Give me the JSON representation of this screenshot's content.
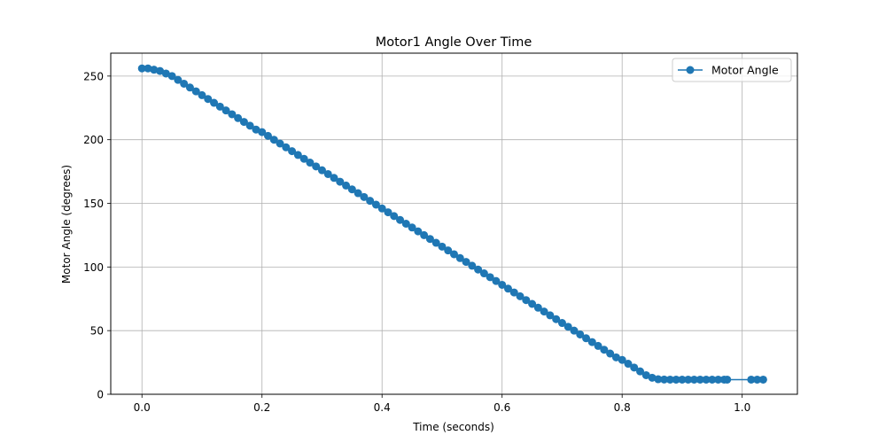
{
  "chart_data": {
    "type": "line",
    "title": "Motor1 Angle Over Time",
    "xlabel": "Time (seconds)",
    "ylabel": "Motor Angle (degrees)",
    "xlim": [
      -0.052,
      1.092
    ],
    "ylim": [
      0,
      268
    ],
    "x_ticks": [
      0.0,
      0.2,
      0.4,
      0.6,
      0.8,
      1.0
    ],
    "x_tick_labels": [
      "0.0",
      "0.2",
      "0.4",
      "0.6",
      "0.8",
      "1.0"
    ],
    "y_ticks": [
      0,
      50,
      100,
      150,
      200,
      250
    ],
    "y_tick_labels": [
      "0",
      "50",
      "100",
      "150",
      "200",
      "250"
    ],
    "grid": true,
    "legend_position": "top-right",
    "colors": {
      "series": "#1f77b4",
      "grid": "#b0b0b0",
      "axis": "#000000"
    },
    "series": [
      {
        "name": "Motor Angle",
        "marker": "circle",
        "x": [
          0.0,
          0.01,
          0.02,
          0.03,
          0.04,
          0.05,
          0.06,
          0.07,
          0.08,
          0.09,
          0.1,
          0.11,
          0.12,
          0.13,
          0.14,
          0.15,
          0.16,
          0.17,
          0.18,
          0.19,
          0.2,
          0.21,
          0.22,
          0.23,
          0.24,
          0.25,
          0.26,
          0.27,
          0.28,
          0.29,
          0.3,
          0.31,
          0.32,
          0.33,
          0.34,
          0.35,
          0.36,
          0.37,
          0.38,
          0.39,
          0.4,
          0.41,
          0.42,
          0.43,
          0.44,
          0.45,
          0.46,
          0.47,
          0.48,
          0.49,
          0.5,
          0.51,
          0.52,
          0.53,
          0.54,
          0.55,
          0.56,
          0.57,
          0.58,
          0.59,
          0.6,
          0.61,
          0.62,
          0.63,
          0.64,
          0.65,
          0.66,
          0.67,
          0.68,
          0.69,
          0.7,
          0.71,
          0.72,
          0.73,
          0.74,
          0.75,
          0.76,
          0.77,
          0.78,
          0.79,
          0.8,
          0.81,
          0.82,
          0.83,
          0.84,
          0.85,
          0.86,
          0.87,
          0.88,
          0.89,
          0.9,
          0.91,
          0.92,
          0.93,
          0.94,
          0.95,
          0.96,
          0.97,
          0.975,
          1.015,
          1.025,
          1.035
        ],
        "y": [
          256,
          256,
          255,
          254,
          252,
          250,
          247,
          244,
          241,
          238,
          235,
          232,
          229,
          226,
          223,
          220,
          217,
          214,
          211,
          208,
          206,
          203,
          200,
          197,
          194,
          191,
          188,
          185,
          182,
          179,
          176,
          173,
          170,
          167,
          164,
          161,
          158,
          155,
          152,
          149,
          146,
          143,
          140,
          137,
          134,
          131,
          128,
          125,
          122,
          119,
          116,
          113,
          110,
          107,
          104,
          101,
          98,
          95,
          92,
          89,
          86,
          83,
          80,
          77,
          74,
          71,
          68,
          65,
          62,
          59,
          56,
          53,
          50,
          47,
          44,
          41,
          38,
          35,
          32,
          29,
          27,
          24,
          21,
          18,
          15,
          13,
          11.8,
          11.6,
          11.5,
          11.5,
          11.5,
          11.5,
          11.5,
          11.5,
          11.5,
          11.5,
          11.5,
          11.5,
          11.5,
          11.5,
          11.5,
          11.5
        ]
      }
    ]
  }
}
